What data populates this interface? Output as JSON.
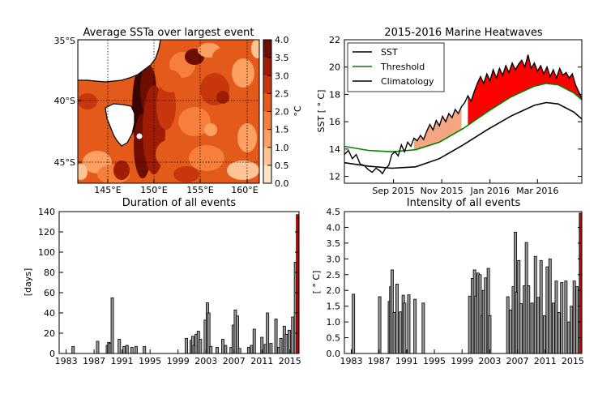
{
  "chart_data": [
    {
      "id": "map",
      "type": "heatmap",
      "title": "Average SSTa over largest event",
      "x_ticks": [
        "145°E",
        "150°E",
        "155°E",
        "160°E"
      ],
      "y_ticks": [
        "35°S",
        "40°S",
        "45°S"
      ],
      "colorbar": {
        "label": "°C",
        "ticks": [
          "0.0",
          "0.5",
          "1.0",
          "1.5",
          "2.0",
          "2.5",
          "3.0",
          "3.5",
          "4.0"
        ],
        "levels": [
          "#fde3c8",
          "#fdc495",
          "#fda062",
          "#f67f3b",
          "#e35a1b",
          "#c7360c",
          "#a01c05",
          "#6e0d02",
          "#3a0400"
        ]
      },
      "colors": {
        "land": "#ffffff",
        "coast": "#000000",
        "marker": "#ffffff"
      }
    },
    {
      "id": "heatwaves",
      "type": "line",
      "title": "2015-2016 Marine Heatwaves",
      "ylabel": "SST [ ° C]",
      "ylim": [
        11.5,
        22
      ],
      "yticks": [
        "12",
        "14",
        "16",
        "18",
        "20",
        "22"
      ],
      "xticks": [
        "Sep 2015",
        "Nov 2015",
        "Jan 2016",
        "Mar 2016"
      ],
      "legend": [
        {
          "name": "SST",
          "color": "#000000"
        },
        {
          "name": "Threshold",
          "color": "#008000"
        },
        {
          "name": "Climatology",
          "color": "#000000"
        }
      ],
      "fill_colors": {
        "minor": "#f4a582",
        "major": "#ff0000"
      },
      "xticks_day": [
        62,
        123,
        184,
        244
      ],
      "xlim_day": [
        0,
        300
      ],
      "climatology": [
        [
          0,
          13.0
        ],
        [
          30,
          12.75
        ],
        [
          60,
          12.6
        ],
        [
          90,
          12.7
        ],
        [
          120,
          13.3
        ],
        [
          150,
          14.3
        ],
        [
          180,
          15.4
        ],
        [
          210,
          16.4
        ],
        [
          240,
          17.2
        ],
        [
          255,
          17.4
        ],
        [
          270,
          17.3
        ],
        [
          290,
          16.7
        ],
        [
          300,
          16.2
        ]
      ],
      "threshold": [
        [
          0,
          14.2
        ],
        [
          30,
          13.9
        ],
        [
          60,
          13.8
        ],
        [
          90,
          13.95
        ],
        [
          120,
          14.5
        ],
        [
          150,
          15.5
        ],
        [
          180,
          16.7
        ],
        [
          210,
          17.8
        ],
        [
          240,
          18.6
        ],
        [
          255,
          18.8
        ],
        [
          270,
          18.7
        ],
        [
          290,
          18.1
        ],
        [
          300,
          17.6
        ]
      ],
      "sst": [
        [
          0,
          13.6
        ],
        [
          5,
          13.9
        ],
        [
          10,
          13.3
        ],
        [
          15,
          13.6
        ],
        [
          20,
          12.9
        ],
        [
          25,
          12.8
        ],
        [
          30,
          12.5
        ],
        [
          35,
          12.3
        ],
        [
          40,
          12.6
        ],
        [
          45,
          12.4
        ],
        [
          48,
          12.2
        ],
        [
          52,
          12.6
        ],
        [
          56,
          12.8
        ],
        [
          60,
          13.6
        ],
        [
          64,
          13.8
        ],
        [
          68,
          13.5
        ],
        [
          72,
          14.3
        ],
        [
          76,
          13.8
        ],
        [
          80,
          14.5
        ],
        [
          84,
          14.2
        ],
        [
          88,
          14.8
        ],
        [
          92,
          14.6
        ],
        [
          96,
          15.0
        ],
        [
          100,
          14.7
        ],
        [
          104,
          15.3
        ],
        [
          108,
          15.8
        ],
        [
          112,
          15.4
        ],
        [
          116,
          16.1
        ],
        [
          120,
          15.7
        ],
        [
          124,
          16.4
        ],
        [
          128,
          16.0
        ],
        [
          132,
          16.6
        ],
        [
          136,
          16.3
        ],
        [
          140,
          16.9
        ],
        [
          144,
          16.6
        ],
        [
          148,
          17.1
        ],
        [
          152,
          17.4
        ],
        [
          156,
          17.9
        ],
        [
          160,
          17.5
        ],
        [
          164,
          18.2
        ],
        [
          168,
          18.8
        ],
        [
          172,
          19.3
        ],
        [
          176,
          18.8
        ],
        [
          180,
          19.5
        ],
        [
          184,
          19.0
        ],
        [
          188,
          19.8
        ],
        [
          192,
          19.2
        ],
        [
          196,
          19.9
        ],
        [
          200,
          19.4
        ],
        [
          204,
          20.1
        ],
        [
          208,
          19.6
        ],
        [
          212,
          20.3
        ],
        [
          216,
          19.8
        ],
        [
          220,
          20.2
        ],
        [
          224,
          20.5
        ],
        [
          228,
          20.0
        ],
        [
          232,
          20.9
        ],
        [
          236,
          19.9
        ],
        [
          240,
          20.3
        ],
        [
          244,
          19.7
        ],
        [
          248,
          20.1
        ],
        [
          252,
          19.5
        ],
        [
          256,
          20.0
        ],
        [
          260,
          19.3
        ],
        [
          264,
          19.8
        ],
        [
          268,
          19.2
        ],
        [
          272,
          19.9
        ],
        [
          276,
          19.4
        ],
        [
          280,
          19.6
        ],
        [
          284,
          19.2
        ],
        [
          288,
          19.5
        ],
        [
          292,
          18.7
        ],
        [
          296,
          18.2
        ],
        [
          300,
          17.7
        ]
      ]
    },
    {
      "id": "duration",
      "type": "bar",
      "title": "Duration of all events",
      "ylabel": "[days]",
      "ylim": [
        0,
        140
      ],
      "yticks": [
        "0",
        "20",
        "40",
        "60",
        "80",
        "100",
        "120",
        "140"
      ],
      "xticks": [
        "1983",
        "1987",
        "1991",
        "1995",
        "1999",
        "2003",
        "2007",
        "2011",
        "2015"
      ],
      "xticks_year": [
        1983,
        1987,
        1991,
        1995,
        1999,
        2003,
        2007,
        2011,
        2015
      ],
      "xlim_year": [
        1982,
        2016.3
      ],
      "colors": {
        "bar": "#999999",
        "edge": "#000000",
        "highlight": "#cc0000"
      },
      "bars": [
        [
          1984.0,
          7
        ],
        [
          1987.5,
          12
        ],
        [
          1988.9,
          8
        ],
        [
          1989.1,
          11
        ],
        [
          1989.3,
          10
        ],
        [
          1989.6,
          55
        ],
        [
          1990.6,
          14
        ],
        [
          1991.3,
          7
        ],
        [
          1991.7,
          8
        ],
        [
          1992.4,
          6
        ],
        [
          1993.0,
          7
        ],
        [
          1994.2,
          7
        ],
        [
          2000.2,
          15
        ],
        [
          2000.9,
          13
        ],
        [
          2001.1,
          17
        ],
        [
          2001.3,
          8
        ],
        [
          2001.6,
          19
        ],
        [
          2001.9,
          22
        ],
        [
          2002.2,
          14
        ],
        [
          2002.9,
          33
        ],
        [
          2003.2,
          50
        ],
        [
          2003.4,
          40
        ],
        [
          2003.7,
          7
        ],
        [
          2004.6,
          6
        ],
        [
          2005.4,
          14
        ],
        [
          2005.8,
          8
        ],
        [
          2006.6,
          6
        ],
        [
          2006.9,
          28
        ],
        [
          2007.2,
          43
        ],
        [
          2007.5,
          37
        ],
        [
          2007.8,
          5
        ],
        [
          2009.1,
          6
        ],
        [
          2009.5,
          8
        ],
        [
          2009.9,
          24
        ],
        [
          2011.0,
          16
        ],
        [
          2011.5,
          9
        ],
        [
          2011.8,
          40
        ],
        [
          2012.3,
          10
        ],
        [
          2013.0,
          34
        ],
        [
          2013.4,
          6
        ],
        [
          2013.7,
          15
        ],
        [
          2014.2,
          27
        ],
        [
          2014.5,
          19
        ],
        [
          2014.9,
          23
        ],
        [
          2015.4,
          36
        ],
        [
          2015.8,
          90
        ]
      ],
      "highlight_bar": [
        2016.1,
        137
      ]
    },
    {
      "id": "intensity",
      "type": "bar",
      "title": "Intensity of all events",
      "ylabel": "[ ° C]",
      "ylim": [
        0,
        4.5
      ],
      "yticks": [
        "0.0",
        "0.5",
        "1.0",
        "1.5",
        "2.0",
        "2.5",
        "3.0",
        "3.5",
        "4.0",
        "4.5"
      ],
      "xticks": [
        "1983",
        "1987",
        "1991",
        "1995",
        "1999",
        "2003",
        "2007",
        "2011",
        "2015"
      ],
      "xticks_year": [
        1983,
        1987,
        1991,
        1995,
        1999,
        2003,
        2007,
        2011,
        2015
      ],
      "xlim_year": [
        1982,
        2016.3
      ],
      "colors": {
        "bar": "#999999",
        "edge": "#000000",
        "highlight": "#cc0000"
      },
      "bars": [
        [
          1983.3,
          1.88
        ],
        [
          1987.1,
          1.8
        ],
        [
          1988.5,
          1.65
        ],
        [
          1988.7,
          2.12
        ],
        [
          1988.9,
          2.65
        ],
        [
          1989.2,
          1.3
        ],
        [
          1989.6,
          2.2
        ],
        [
          1990.1,
          1.32
        ],
        [
          1990.5,
          1.85
        ],
        [
          1990.7,
          1.6
        ],
        [
          1991.3,
          1.86
        ],
        [
          1992.2,
          1.72
        ],
        [
          1993.4,
          1.6
        ],
        [
          2000.1,
          1.82
        ],
        [
          2000.5,
          2.38
        ],
        [
          2000.8,
          2.65
        ],
        [
          2001.0,
          1.82
        ],
        [
          2001.3,
          2.55
        ],
        [
          2001.6,
          2.5
        ],
        [
          2001.9,
          1.2
        ],
        [
          2002.1,
          2.0
        ],
        [
          2002.4,
          2.4
        ],
        [
          2002.8,
          2.7
        ],
        [
          2003.0,
          1.2
        ],
        [
          2005.6,
          1.8
        ],
        [
          2006.0,
          1.38
        ],
        [
          2006.4,
          2.12
        ],
        [
          2006.7,
          3.85
        ],
        [
          2006.9,
          1.95
        ],
        [
          2007.2,
          2.95
        ],
        [
          2007.5,
          1.58
        ],
        [
          2008.0,
          2.15
        ],
        [
          2008.3,
          3.52
        ],
        [
          2008.6,
          2.15
        ],
        [
          2009.1,
          1.6
        ],
        [
          2009.6,
          3.08
        ],
        [
          2010.0,
          1.78
        ],
        [
          2010.4,
          2.95
        ],
        [
          2010.9,
          1.2
        ],
        [
          2011.3,
          2.75
        ],
        [
          2011.7,
          3.0
        ],
        [
          2012.2,
          1.6
        ],
        [
          2012.6,
          2.3
        ],
        [
          2013.0,
          1.3
        ],
        [
          2013.4,
          2.25
        ],
        [
          2014.0,
          2.3
        ],
        [
          2014.4,
          1.0
        ],
        [
          2014.8,
          1.5
        ],
        [
          2015.2,
          2.3
        ],
        [
          2015.6,
          2.12
        ]
      ],
      "highlight_bar": [
        2016.1,
        4.45
      ]
    }
  ]
}
